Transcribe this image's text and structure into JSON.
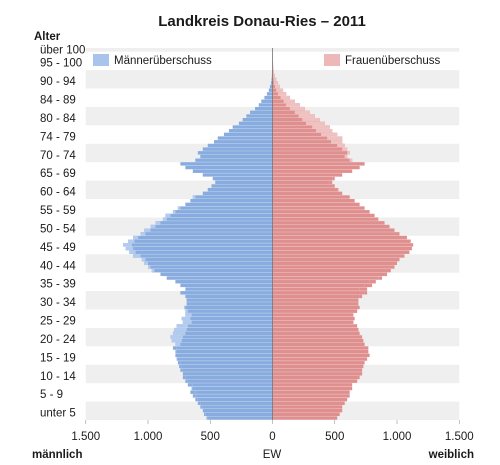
{
  "chart_data": {
    "type": "bar",
    "title": "Landkreis Donau-Ries – 2011",
    "yaxis_title": "Alter",
    "xlabel": "EW",
    "left_label": "männlich",
    "right_label": "weiblich",
    "xlim": [
      -1500,
      1500
    ],
    "xticks": [
      {
        "value": -1500,
        "label": "1.500"
      },
      {
        "value": -1000,
        "label": "1.000"
      },
      {
        "value": -500,
        "label": "500"
      },
      {
        "value": 0,
        "label": "0"
      },
      {
        "value": 500,
        "label": "500"
      },
      {
        "value": 1000,
        "label": "1.000"
      },
      {
        "value": 1500,
        "label": "1.500"
      }
    ],
    "age_labels": [
      {
        "age": 2,
        "label": "unter 5"
      },
      {
        "age": 7,
        "label": "5 - 9"
      },
      {
        "age": 12,
        "label": "10 - 14"
      },
      {
        "age": 17,
        "label": "15 - 19"
      },
      {
        "age": 22,
        "label": "20 - 24"
      },
      {
        "age": 27,
        "label": "25 - 29"
      },
      {
        "age": 32,
        "label": "30 - 34"
      },
      {
        "age": 37,
        "label": "35 - 39"
      },
      {
        "age": 42,
        "label": "40 - 44"
      },
      {
        "age": 47,
        "label": "45 - 49"
      },
      {
        "age": 52,
        "label": "50 - 54"
      },
      {
        "age": 57,
        "label": "55 - 59"
      },
      {
        "age": 62,
        "label": "60 - 64"
      },
      {
        "age": 67,
        "label": "65 - 69"
      },
      {
        "age": 72,
        "label": "70 - 74"
      },
      {
        "age": 77,
        "label": "74 - 79"
      },
      {
        "age": 82,
        "label": "80 - 84"
      },
      {
        "age": 87,
        "label": "84 - 89"
      },
      {
        "age": 92,
        "label": "90 - 94"
      },
      {
        "age": 97,
        "label": "95 - 100"
      },
      {
        "age": 100.6,
        "label": "über 100"
      }
    ],
    "legend": [
      {
        "label": "Männerüberschuss",
        "color": "#a9c4ec"
      },
      {
        "label": "Frauenüberschuss",
        "color": "#efb8b8"
      }
    ],
    "colors": {
      "male": "#88acdf",
      "female": "#e08f8f",
      "male_surplus": "#b3cbee",
      "female_surplus": "#efc1c1",
      "band": "#efefef"
    },
    "ages": [
      0,
      1,
      2,
      3,
      4,
      5,
      6,
      7,
      8,
      9,
      10,
      11,
      12,
      13,
      14,
      15,
      16,
      17,
      18,
      19,
      20,
      21,
      22,
      23,
      24,
      25,
      26,
      27,
      28,
      29,
      30,
      31,
      32,
      33,
      34,
      35,
      36,
      37,
      38,
      39,
      40,
      41,
      42,
      43,
      44,
      45,
      46,
      47,
      48,
      49,
      50,
      51,
      52,
      53,
      54,
      55,
      56,
      57,
      58,
      59,
      60,
      61,
      62,
      63,
      64,
      65,
      66,
      67,
      68,
      69,
      70,
      71,
      72,
      73,
      74,
      75,
      76,
      77,
      78,
      79,
      80,
      81,
      82,
      83,
      84,
      85,
      86,
      87,
      88,
      89,
      90,
      91,
      92,
      93,
      94,
      95,
      96,
      97,
      98,
      99,
      100
    ],
    "series": [
      {
        "name": "Männer",
        "values": [
          530,
          550,
          560,
          580,
          600,
          620,
          640,
          660,
          650,
          680,
          700,
          720,
          720,
          740,
          750,
          760,
          770,
          780,
          780,
          800,
          780,
          810,
          820,
          800,
          790,
          770,
          720,
          730,
          700,
          700,
          710,
          690,
          690,
          700,
          740,
          700,
          740,
          780,
          850,
          900,
          970,
          1000,
          1030,
          1050,
          1120,
          1150,
          1180,
          1200,
          1160,
          1120,
          1060,
          1030,
          980,
          940,
          880,
          860,
          800,
          760,
          700,
          660,
          640,
          560,
          520,
          490,
          460,
          480,
          560,
          640,
          700,
          740,
          620,
          580,
          600,
          560,
          520,
          470,
          440,
          390,
          350,
          320,
          270,
          240,
          210,
          180,
          140,
          110,
          90,
          65,
          45,
          30,
          20,
          12,
          8,
          5,
          3,
          2,
          1,
          1,
          0,
          0,
          0
        ]
      },
      {
        "name": "Frauen",
        "values": [
          520,
          540,
          560,
          560,
          580,
          600,
          620,
          620,
          640,
          640,
          680,
          700,
          720,
          720,
          730,
          740,
          760,
          780,
          770,
          770,
          740,
          730,
          720,
          700,
          690,
          680,
          650,
          660,
          650,
          680,
          700,
          690,
          690,
          720,
          760,
          760,
          800,
          830,
          880,
          920,
          950,
          980,
          1000,
          1020,
          1060,
          1100,
          1120,
          1130,
          1110,
          1080,
          1020,
          980,
          940,
          900,
          850,
          820,
          780,
          740,
          700,
          660,
          620,
          560,
          530,
          500,
          480,
          500,
          560,
          640,
          700,
          740,
          640,
          600,
          620,
          600,
          580,
          560,
          560,
          520,
          480,
          460,
          420,
          380,
          340,
          300,
          260,
          220,
          180,
          140,
          110,
          85,
          60,
          45,
          30,
          20,
          12,
          8,
          5,
          3,
          2,
          1,
          1
        ]
      }
    ]
  }
}
